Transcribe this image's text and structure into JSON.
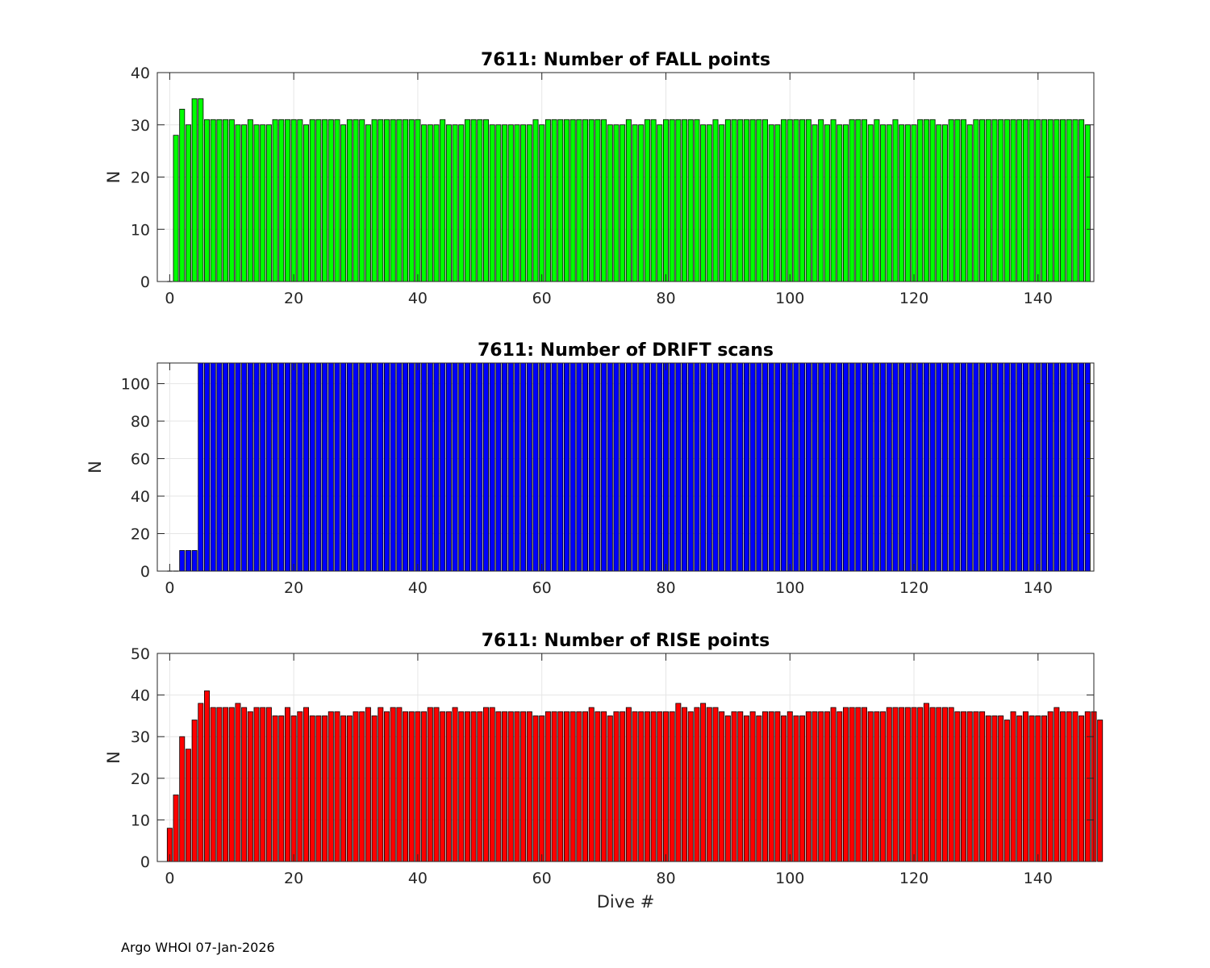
{
  "footer": "Argo WHOI 07-Jan-2026",
  "chart_data": [
    {
      "type": "bar",
      "title": "7611: Number of FALL points",
      "xlabel": "",
      "ylabel": "N",
      "xlim": [
        -2,
        149
      ],
      "ylim": [
        0,
        40
      ],
      "xticks": [
        0,
        20,
        40,
        60,
        80,
        100,
        120,
        140
      ],
      "yticks": [
        0,
        10,
        20,
        30,
        40
      ],
      "color": "#00ff00",
      "x_start": 0,
      "values": [
        0,
        28,
        33,
        30,
        35,
        35,
        31,
        31,
        31,
        31,
        31,
        30,
        30,
        31,
        30,
        30,
        30,
        31,
        31,
        31,
        31,
        31,
        30,
        31,
        31,
        31,
        31,
        31,
        30,
        31,
        31,
        31,
        30,
        31,
        31,
        31,
        31,
        31,
        31,
        31,
        31,
        30,
        30,
        30,
        31,
        30,
        30,
        30,
        31,
        31,
        31,
        31,
        30,
        30,
        30,
        30,
        30,
        30,
        30,
        31,
        30,
        31,
        31,
        31,
        31,
        31,
        31,
        31,
        31,
        31,
        31,
        30,
        30,
        30,
        31,
        30,
        30,
        31,
        31,
        30,
        31,
        31,
        31,
        31,
        31,
        31,
        30,
        30,
        31,
        30,
        31,
        31,
        31,
        31,
        31,
        31,
        31,
        30,
        30,
        31,
        31,
        31,
        31,
        31,
        30,
        31,
        30,
        31,
        30,
        30,
        31,
        31,
        31,
        30,
        31,
        30,
        30,
        31,
        30,
        30,
        30,
        31,
        31,
        31,
        30,
        30,
        31,
        31,
        31,
        30,
        31,
        31,
        31,
        31,
        31,
        31,
        31,
        31,
        31,
        31,
        31,
        31,
        31,
        31,
        31,
        31,
        31,
        31,
        30
      ]
    },
    {
      "type": "bar",
      "title": "7611: Number of DRIFT scans",
      "xlabel": "",
      "ylabel": "N",
      "xlim": [
        -2,
        149
      ],
      "ylim": [
        0,
        111
      ],
      "xticks": [
        0,
        20,
        40,
        60,
        80,
        100,
        120,
        140
      ],
      "yticks": [
        0,
        20,
        40,
        60,
        80,
        100
      ],
      "color": "#0000ff",
      "x_start": 0,
      "values": [
        0,
        0,
        11,
        11,
        11,
        111,
        111,
        111,
        111,
        111,
        111,
        111,
        111,
        111,
        111,
        111,
        111,
        111,
        111,
        111,
        111,
        111,
        111,
        111,
        111,
        111,
        111,
        111,
        111,
        111,
        111,
        111,
        111,
        111,
        111,
        111,
        111,
        111,
        111,
        111,
        111,
        111,
        111,
        111,
        111,
        111,
        111,
        111,
        111,
        111,
        111,
        111,
        111,
        111,
        111,
        111,
        111,
        111,
        111,
        111,
        111,
        111,
        111,
        111,
        111,
        111,
        111,
        111,
        111,
        111,
        111,
        111,
        111,
        111,
        111,
        111,
        111,
        111,
        111,
        111,
        111,
        111,
        111,
        111,
        111,
        111,
        111,
        111,
        111,
        111,
        111,
        111,
        111,
        111,
        111,
        111,
        111,
        111,
        111,
        111,
        111,
        111,
        111,
        111,
        111,
        111,
        111,
        111,
        111,
        111,
        111,
        111,
        111,
        111,
        111,
        111,
        111,
        111,
        111,
        111,
        111,
        111,
        111,
        111,
        111,
        111,
        111,
        111,
        111,
        111,
        111,
        111,
        111,
        111,
        111,
        111,
        111,
        111,
        111,
        111,
        111,
        111,
        111,
        111,
        111,
        111,
        111,
        111,
        111
      ]
    },
    {
      "type": "bar",
      "title": "7611: Number of RISE points",
      "xlabel": "Dive #",
      "ylabel": "N",
      "xlim": [
        -2,
        149
      ],
      "ylim": [
        0,
        50
      ],
      "xticks": [
        0,
        20,
        40,
        60,
        80,
        100,
        120,
        140
      ],
      "yticks": [
        0,
        10,
        20,
        30,
        40,
        50
      ],
      "color": "#ff0000",
      "x_start": 0,
      "values": [
        8,
        16,
        30,
        27,
        34,
        38,
        41,
        37,
        37,
        37,
        37,
        38,
        37,
        36,
        37,
        37,
        37,
        35,
        35,
        37,
        35,
        36,
        37,
        35,
        35,
        35,
        36,
        36,
        35,
        35,
        36,
        36,
        37,
        35,
        37,
        36,
        37,
        37,
        36,
        36,
        36,
        36,
        37,
        37,
        36,
        36,
        37,
        36,
        36,
        36,
        36,
        37,
        37,
        36,
        36,
        36,
        36,
        36,
        36,
        35,
        35,
        36,
        36,
        36,
        36,
        36,
        36,
        36,
        37,
        36,
        36,
        35,
        36,
        36,
        37,
        36,
        36,
        36,
        36,
        36,
        36,
        36,
        38,
        37,
        36,
        37,
        38,
        37,
        37,
        36,
        35,
        36,
        36,
        35,
        36,
        35,
        36,
        36,
        36,
        35,
        36,
        35,
        35,
        36,
        36,
        36,
        36,
        37,
        36,
        37,
        37,
        37,
        37,
        36,
        36,
        36,
        37,
        37,
        37,
        37,
        37,
        37,
        38,
        37,
        37,
        37,
        37,
        36,
        36,
        36,
        36,
        36,
        35,
        35,
        35,
        34,
        36,
        35,
        36,
        35,
        35,
        35,
        36,
        37,
        36,
        36,
        36,
        35,
        36,
        36,
        34
      ]
    }
  ]
}
